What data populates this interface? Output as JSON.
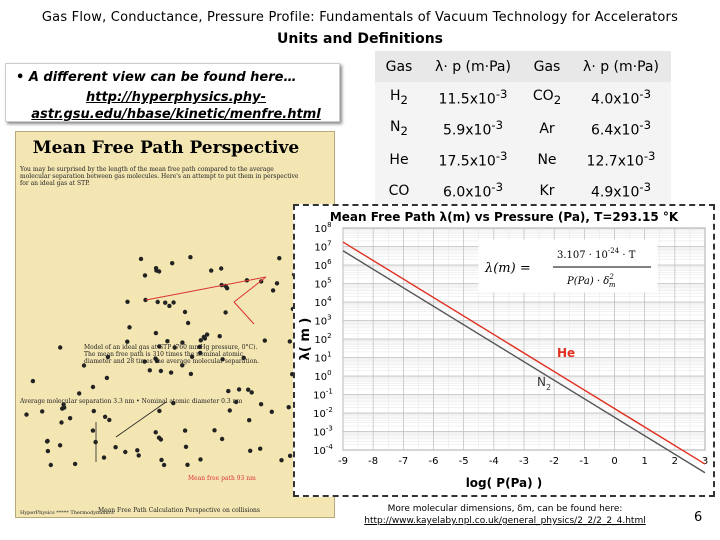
{
  "header": {
    "title": "Gas Flow, Conductance, Pressure Profile:  Fundamentals of Vacuum Technology for Accelerators",
    "section": "Units and Definitions"
  },
  "bullet": {
    "text": "• A different view can be found here…",
    "url": "http://hyperphysics.phy-astr.gsu.edu/hbase/kinetic/menfre.html"
  },
  "hyperphysics": {
    "title": "Mean Free Path Perspective",
    "intro": "You may be surprised by the length of the mean free path compared to the average molecular separation between gas molecules. Here's an attempt to put them in perspective for an ideal gas at STP.",
    "model": "Model of an ideal gas at STP (760 mmHg pressure, 0°C). The mean free path is 310 times the nominal atomic diameter and 28 times the average molecular separation.",
    "mfp_label": "Mean free path 93 nm",
    "stats": "Average molecular separation 3.3 nm • Nominal atomic diameter 0.3 nm",
    "links": "Mean Free Path Calculation   Perspective on collisions",
    "footer": "HyperPhysics ***** Thermodynamics"
  },
  "table": {
    "headers": [
      "Gas",
      "λ· p (m·Pa)",
      "Gas",
      "λ· p (m·Pa)"
    ],
    "rows": [
      [
        {
          "g": "H",
          "s": "2"
        },
        {
          "m": "11.5x10",
          "e": "-3"
        },
        {
          "g": "CO",
          "s": "2"
        },
        {
          "m": "4.0x10",
          "e": "-3"
        }
      ],
      [
        {
          "g": "N",
          "s": "2"
        },
        {
          "m": "5.9x10",
          "e": "-3"
        },
        {
          "g": "Ar",
          "s": ""
        },
        {
          "m": "6.4x10",
          "e": "-3"
        }
      ],
      [
        {
          "g": "He",
          "s": ""
        },
        {
          "m": "17.5x10",
          "e": "-3"
        },
        {
          "g": "Ne",
          "s": ""
        },
        {
          "m": "12.7x10",
          "e": "-3"
        }
      ],
      [
        {
          "g": "CO",
          "s": ""
        },
        {
          "m": "6.0x10",
          "e": "-3"
        },
        {
          "g": "Kr",
          "s": ""
        },
        {
          "m": "4.9x10",
          "e": "-3"
        }
      ]
    ]
  },
  "chart_data": {
    "type": "line",
    "title": "Mean Free Path λ(m) vs Pressure (Pa), T=293.15 °K",
    "xlabel": "log( P(Pa) )",
    "ylabel": "λ( m )",
    "xlim": [
      -9,
      3
    ],
    "ylim_exp": [
      -4,
      8
    ],
    "x_ticks": [
      -9,
      -8,
      -7,
      -6,
      -5,
      -4,
      -3,
      -2,
      -1,
      0,
      1,
      2,
      3
    ],
    "y_tick_exponents": [
      8,
      7,
      6,
      5,
      4,
      3,
      2,
      1,
      0,
      -1,
      -2,
      -3,
      -4
    ],
    "formula": {
      "lhs": "λ(m) =",
      "num": "3.107 · 10",
      "num_exp": "-24",
      "num_tail": " · T",
      "den": "P(Pa) · δ",
      "den_sub": "m",
      "den_sup": "2"
    },
    "grid": true,
    "series": [
      {
        "name": "He",
        "color": "#e03020",
        "x": [
          -9,
          3
        ],
        "log_y": [
          7.24,
          -4.76
        ]
      },
      {
        "name": "N2",
        "color": "#555555",
        "x": [
          -9,
          3
        ],
        "log_y": [
          6.77,
          -5.23
        ]
      }
    ]
  },
  "footnote": {
    "text": "More molecular dimensions, δm, can be found here:",
    "url": "http://www.kayelaby.npl.co.uk/general_physics/2_2/2_2_4.html"
  },
  "page_number": "6"
}
